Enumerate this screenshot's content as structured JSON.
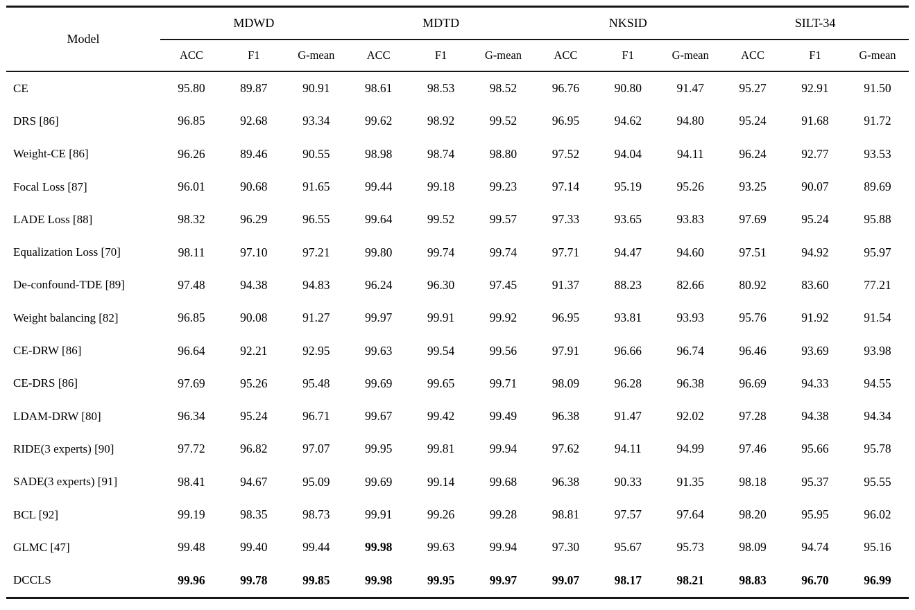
{
  "page": {
    "background": "#ffffff",
    "text_color": "#000000",
    "rule_color": "#161616"
  },
  "table": {
    "model_header": "Model",
    "groups": [
      "MDWD",
      "MDTD",
      "NKSID",
      "SILT-34"
    ],
    "sub_columns": [
      "ACC",
      "F1",
      "G-mean"
    ],
    "rows": [
      {
        "model": "CE",
        "values": [
          "95.80",
          "89.87",
          "90.91",
          "98.61",
          "98.53",
          "98.52",
          "96.76",
          "90.80",
          "91.47",
          "95.27",
          "92.91",
          "91.50"
        ],
        "bold_indices": []
      },
      {
        "model": "DRS [86]",
        "values": [
          "96.85",
          "92.68",
          "93.34",
          "99.62",
          "98.92",
          "99.52",
          "96.95",
          "94.62",
          "94.80",
          "95.24",
          "91.68",
          "91.72"
        ],
        "bold_indices": []
      },
      {
        "model": "Weight-CE [86]",
        "values": [
          "96.26",
          "89.46",
          "90.55",
          "98.98",
          "98.74",
          "98.80",
          "97.52",
          "94.04",
          "94.11",
          "96.24",
          "92.77",
          "93.53"
        ],
        "bold_indices": []
      },
      {
        "model": "Focal Loss [87]",
        "values": [
          "96.01",
          "90.68",
          "91.65",
          "99.44",
          "99.18",
          "99.23",
          "97.14",
          "95.19",
          "95.26",
          "93.25",
          "90.07",
          "89.69"
        ],
        "bold_indices": []
      },
      {
        "model": "LADE Loss [88]",
        "values": [
          "98.32",
          "96.29",
          "96.55",
          "99.64",
          "99.52",
          "99.57",
          "97.33",
          "93.65",
          "93.83",
          "97.69",
          "95.24",
          "95.88"
        ],
        "bold_indices": []
      },
      {
        "model": "Equalization Loss [70]",
        "values": [
          "98.11",
          "97.10",
          "97.21",
          "99.80",
          "99.74",
          "99.74",
          "97.71",
          "94.47",
          "94.60",
          "97.51",
          "94.92",
          "95.97"
        ],
        "bold_indices": []
      },
      {
        "model": "De-confound-TDE [89]",
        "values": [
          "97.48",
          "94.38",
          "94.83",
          "96.24",
          "96.30",
          "97.45",
          "91.37",
          "88.23",
          "82.66",
          "80.92",
          "83.60",
          "77.21"
        ],
        "bold_indices": []
      },
      {
        "model": "Weight balancing [82]",
        "values": [
          "96.85",
          "90.08",
          "91.27",
          "99.97",
          "99.91",
          "99.92",
          "96.95",
          "93.81",
          "93.93",
          "95.76",
          "91.92",
          "91.54"
        ],
        "bold_indices": []
      },
      {
        "model": "CE-DRW [86]",
        "values": [
          "96.64",
          "92.21",
          "92.95",
          "99.63",
          "99.54",
          "99.56",
          "97.91",
          "96.66",
          "96.74",
          "96.46",
          "93.69",
          "93.98"
        ],
        "bold_indices": []
      },
      {
        "model": "CE-DRS [86]",
        "values": [
          "97.69",
          "95.26",
          "95.48",
          "99.69",
          "99.65",
          "99.71",
          "98.09",
          "96.28",
          "96.38",
          "96.69",
          "94.33",
          "94.55"
        ],
        "bold_indices": []
      },
      {
        "model": "LDAM-DRW [80]",
        "values": [
          "96.34",
          "95.24",
          "96.71",
          "99.67",
          "99.42",
          "99.49",
          "96.38",
          "91.47",
          "92.02",
          "97.28",
          "94.38",
          "94.34"
        ],
        "bold_indices": []
      },
      {
        "model": "RIDE(3 experts) [90]",
        "values": [
          "97.72",
          "96.82",
          "97.07",
          "99.95",
          "99.81",
          "99.94",
          "97.62",
          "94.11",
          "94.99",
          "97.46",
          "95.66",
          "95.78"
        ],
        "bold_indices": []
      },
      {
        "model": "SADE(3 experts) [91]",
        "values": [
          "98.41",
          "94.67",
          "95.09",
          "99.69",
          "99.14",
          "99.68",
          "96.38",
          "90.33",
          "91.35",
          "98.18",
          "95.37",
          "95.55"
        ],
        "bold_indices": []
      },
      {
        "model": "BCL [92]",
        "values": [
          "99.19",
          "98.35",
          "98.73",
          "99.91",
          "99.26",
          "99.28",
          "98.81",
          "97.57",
          "97.64",
          "98.20",
          "95.95",
          "96.02"
        ],
        "bold_indices": []
      },
      {
        "model": "GLMC [47]",
        "values": [
          "99.48",
          "99.40",
          "99.44",
          "99.98",
          "99.63",
          "99.94",
          "97.30",
          "95.67",
          "95.73",
          "98.09",
          "94.74",
          "95.16"
        ],
        "bold_indices": [
          3
        ]
      },
      {
        "model": "DCCLS",
        "values": [
          "99.96",
          "99.78",
          "99.85",
          "99.98",
          "99.95",
          "99.97",
          "99.07",
          "98.17",
          "98.21",
          "98.83",
          "96.70",
          "96.99"
        ],
        "bold_indices": [
          0,
          1,
          2,
          3,
          4,
          5,
          6,
          7,
          8,
          9,
          10,
          11
        ]
      }
    ]
  }
}
